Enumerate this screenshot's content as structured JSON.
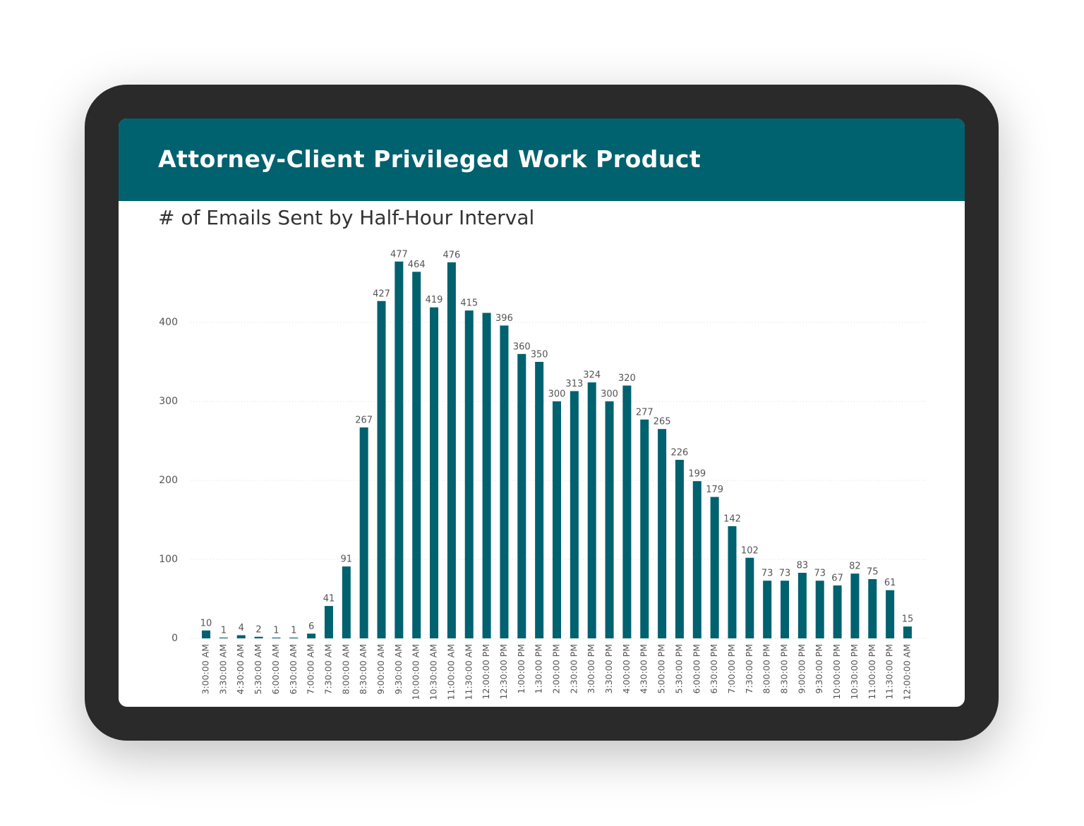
{
  "header": {
    "title": "Attorney-Client Privileged Work Product"
  },
  "chart_data": {
    "type": "bar",
    "title": "# of Emails Sent by Half-Hour Interval",
    "categories": [
      "3:00:00 AM",
      "3:30:00 AM",
      "4:30:00 AM",
      "5:30:00 AM",
      "6:00:00 AM",
      "6:30:00 AM",
      "7:00:00 AM",
      "7:30:00 AM",
      "8:00:00 AM",
      "8:30:00 AM",
      "9:00:00 AM",
      "9:30:00 AM",
      "10:00:00 AM",
      "10:30:00 AM",
      "11:00:00 AM",
      "11:30:00 AM",
      "12:00:00 PM",
      "12:30:00 PM",
      "1:00:00 PM",
      "1:30:00 PM",
      "2:00:00 PM",
      "2:30:00 PM",
      "3:00:00 PM",
      "3:30:00 PM",
      "4:00:00 PM",
      "4:30:00 PM",
      "5:00:00 PM",
      "5:30:00 PM",
      "6:00:00 PM",
      "6:30:00 PM",
      "7:00:00 PM",
      "7:30:00 PM",
      "8:00:00 PM",
      "8:30:00 PM",
      "9:00:00 PM",
      "9:30:00 PM",
      "10:00:00 PM",
      "10:30:00 PM",
      "11:00:00 PM",
      "11:30:00 PM",
      "12:00:00 AM"
    ],
    "values": [
      10,
      1,
      4,
      2,
      1,
      1,
      6,
      41,
      91,
      267,
      427,
      477,
      464,
      419,
      476,
      415,
      412,
      396,
      360,
      350,
      300,
      313,
      324,
      300,
      320,
      277,
      265,
      226,
      199,
      179,
      142,
      102,
      73,
      73,
      83,
      73,
      67,
      82,
      75,
      61,
      15
    ],
    "value_labels": [
      "10",
      "1",
      "4",
      "2",
      "1",
      "1",
      "6",
      "41",
      "91",
      "267",
      "427",
      "477",
      "464",
      "419",
      "476",
      "415",
      null,
      "396",
      "360",
      "350",
      "300",
      "313",
      "324",
      "300",
      "320",
      "277",
      "265",
      "226",
      "199",
      "179",
      "142",
      "102",
      "73",
      "73",
      "83",
      "73",
      "67",
      "82",
      "75",
      "61",
      "15"
    ],
    "color": "#00616f",
    "ylim": [
      0,
      480
    ],
    "yticks": [
      0,
      100,
      200,
      300,
      400
    ],
    "grid": true
  }
}
